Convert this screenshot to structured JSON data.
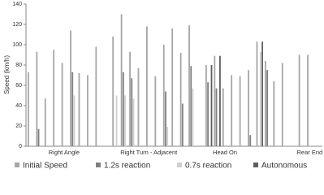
{
  "chart_data": {
    "type": "bar",
    "y_label": "Speed (km/h)",
    "categories": [
      null,
      null,
      null,
      null,
      "Right Angle",
      null,
      null,
      null,
      null,
      null,
      null,
      null,
      null,
      null,
      "Right Turn - Adjacent",
      null,
      null,
      null,
      null,
      null,
      null,
      null,
      null,
      "Head On",
      null,
      null,
      null,
      null,
      null,
      null,
      null,
      null,
      null,
      "Rear End",
      null
    ],
    "series": [
      {
        "name": "Initial Speed",
        "color": "#a6a6a6",
        "values": [
          73,
          93,
          47,
          95,
          82,
          114,
          72,
          70,
          98,
          null,
          108,
          130,
          93,
          77,
          118,
          69,
          100,
          116,
          92,
          119,
          null,
          80,
          89,
          57,
          70,
          69,
          75,
          103,
          84,
          64,
          82,
          null,
          90,
          90,
          null
        ]
      },
      {
        "name": "1.2s reaction",
        "color": "#7f7f7f",
        "values": [
          null,
          17,
          null,
          null,
          null,
          73,
          null,
          null,
          null,
          null,
          null,
          73,
          67,
          null,
          null,
          null,
          54,
          null,
          42,
          79,
          null,
          63,
          57,
          null,
          null,
          null,
          11,
          null,
          75,
          null,
          null,
          null,
          null,
          null,
          null
        ]
      },
      {
        "name": "0.7s reaction",
        "color": "#cfcfcf",
        "values": [
          null,
          null,
          null,
          null,
          null,
          50,
          null,
          null,
          null,
          null,
          50,
          50,
          47,
          null,
          null,
          null,
          19,
          null,
          null,
          57,
          null,
          null,
          null,
          null,
          null,
          null,
          null,
          93,
          null,
          null,
          null,
          null,
          null,
          null,
          null
        ]
      },
      {
        "name": "Autonomous",
        "color": "#5e5e5e",
        "values": [
          null,
          null,
          null,
          null,
          null,
          null,
          null,
          null,
          null,
          null,
          null,
          null,
          null,
          null,
          null,
          null,
          null,
          null,
          null,
          null,
          null,
          80,
          89,
          null,
          null,
          null,
          null,
          103,
          null,
          null,
          null,
          null,
          null,
          null,
          null
        ]
      }
    ],
    "ylim": [
      0,
      140
    ],
    "yticks": [
      0,
      20,
      40,
      60,
      80,
      100,
      120,
      140
    ]
  }
}
